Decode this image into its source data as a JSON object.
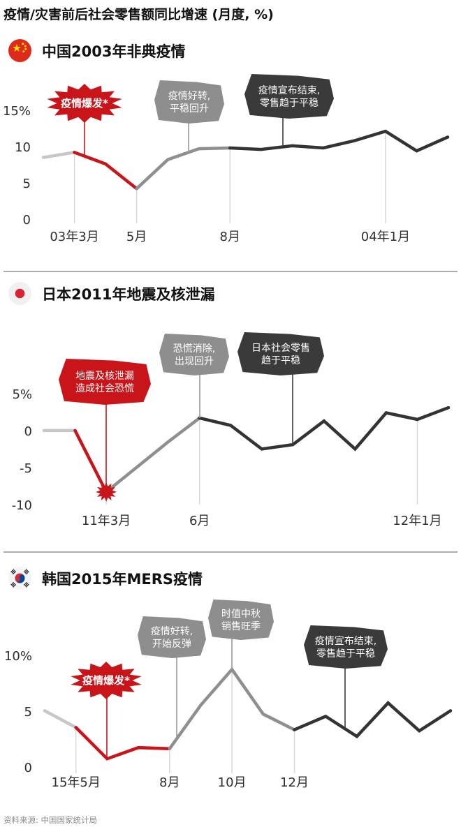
{
  "title": "疫情/灾害前后社会零售额同比增速 (月度, %)",
  "source": "资料来源: 中国国家统计局",
  "colors": {
    "red": "#c9141a",
    "light_gray": "#c7c7c7",
    "mid_gray": "#8f8f8f",
    "dark": "#333333",
    "grid": "#d8d8d8",
    "gray_blob": "#8e8e8e",
    "dark_blob": "#3a3a3a",
    "axis_text": "#2e2e2e"
  },
  "chart_data": [
    {
      "type": "line",
      "title": "中国2003年非典疫情",
      "flag": "china-flag",
      "months": [
        "03年2月",
        "03年3月",
        "03年4月",
        "03年5月",
        "03年6月",
        "03年7月",
        "03年8月",
        "03年9月",
        "03年10月",
        "03年11月",
        "03年12月",
        "04年1月",
        "04年2月",
        "04年3月"
      ],
      "values": [
        8.6,
        9.3,
        7.7,
        4.3,
        8.3,
        9.8,
        9.9,
        9.7,
        10.2,
        9.9,
        10.9,
        12.2,
        9.5,
        11.4
      ],
      "ylim": [
        0,
        15
      ],
      "ylabel": "%",
      "y_ticks": [
        {
          "label": "15%",
          "value": 15
        },
        {
          "label": "10",
          "value": 10
        },
        {
          "label": "5",
          "value": 5
        },
        {
          "label": "0",
          "value": 0
        }
      ],
      "x_ticks": [
        {
          "label": "03年3月",
          "index": 1
        },
        {
          "label": "5月",
          "index": 3
        },
        {
          "label": "8月",
          "index": 6
        },
        {
          "label": "04年1月",
          "index": 11
        }
      ],
      "segments": [
        {
          "from": 0,
          "to": 1,
          "color": "light_gray"
        },
        {
          "from": 1,
          "to": 3,
          "color": "red"
        },
        {
          "from": 3,
          "to": 6,
          "color": "mid_gray"
        },
        {
          "from": 6,
          "to": 13,
          "color": "dark"
        }
      ],
      "annotations": [
        {
          "shape": "burst",
          "style": "red",
          "lines": [
            "疫情爆发*"
          ]
        },
        {
          "shape": "blob",
          "style": "gray",
          "lines": [
            "疫情好转,",
            "平稳回升"
          ]
        },
        {
          "shape": "blob",
          "style": "dark",
          "lines": [
            "疫情宣布结束,",
            "零售趋于平稳"
          ]
        }
      ]
    },
    {
      "type": "line",
      "title": "日本2011年地震及核泄漏",
      "flag": "japan-flag",
      "months": [
        "11年1月",
        "11年2月",
        "11年3月",
        "11年4月",
        "11年5月",
        "11年6月",
        "11年7月",
        "11年8月",
        "11年9月",
        "11年10月",
        "11年11月",
        "11年12月",
        "12年1月",
        "12年2月"
      ],
      "values": [
        0.1,
        0.1,
        -8.2,
        -4.8,
        -1.4,
        1.8,
        0.8,
        -2.4,
        -1.8,
        1.4,
        -2.4,
        2.5,
        1.6,
        3.2
      ],
      "ylim": [
        -10,
        5
      ],
      "ylabel": "%",
      "burst_marker_index": 2,
      "y_ticks": [
        {
          "label": "5%",
          "value": 5
        },
        {
          "label": "0",
          "value": 0
        },
        {
          "label": "-5",
          "value": -5
        },
        {
          "label": "-10",
          "value": -10
        }
      ],
      "x_ticks": [
        {
          "label": "11年3月",
          "index": 2
        },
        {
          "label": "6月",
          "index": 5
        },
        {
          "label": "12年1月",
          "index": 12
        }
      ],
      "segments": [
        {
          "from": 0,
          "to": 1,
          "color": "light_gray"
        },
        {
          "from": 1,
          "to": 2,
          "color": "red"
        },
        {
          "from": 2,
          "to": 5,
          "color": "mid_gray"
        },
        {
          "from": 5,
          "to": 13,
          "color": "dark"
        }
      ],
      "annotations": [
        {
          "shape": "blob",
          "style": "red",
          "lines": [
            "地震及核泄漏",
            "造成社会恐慌"
          ]
        },
        {
          "shape": "blob",
          "style": "gray",
          "lines": [
            "恐慌消除,",
            "出现回升"
          ]
        },
        {
          "shape": "blob",
          "style": "dark",
          "lines": [
            "日本社会零售",
            "趋于平稳"
          ]
        }
      ]
    },
    {
      "type": "line",
      "title": "韩国2015年MERS疫情",
      "flag": "korea-flag",
      "months": [
        "15年4月",
        "15年5月",
        "15年6月",
        "15年7月",
        "15年8月",
        "15年9月",
        "15年10月",
        "15年11月",
        "15年12月",
        "16年1月",
        "16年2月",
        "16年3月",
        "16年4月",
        "16年5月"
      ],
      "values": [
        5.1,
        3.6,
        0.8,
        1.8,
        1.7,
        5.6,
        8.8,
        4.8,
        3.4,
        4.6,
        2.8,
        5.8,
        3.3,
        5.1
      ],
      "ylim": [
        0,
        10
      ],
      "ylabel": "%",
      "y_ticks": [
        {
          "label": "10%",
          "value": 10
        },
        {
          "label": "5",
          "value": 5
        },
        {
          "label": "0",
          "value": 0
        }
      ],
      "x_ticks": [
        {
          "label": "15年5月",
          "index": 1
        },
        {
          "label": "8月",
          "index": 4
        },
        {
          "label": "10月",
          "index": 6
        },
        {
          "label": "12月",
          "index": 8
        }
      ],
      "segments": [
        {
          "from": 0,
          "to": 1,
          "color": "light_gray"
        },
        {
          "from": 1,
          "to": 4,
          "color": "red"
        },
        {
          "from": 4,
          "to": 8,
          "color": "mid_gray"
        },
        {
          "from": 8,
          "to": 13,
          "color": "dark"
        }
      ],
      "annotations": [
        {
          "shape": "burst",
          "style": "red",
          "lines": [
            "疫情爆发*"
          ]
        },
        {
          "shape": "blob",
          "style": "gray",
          "lines": [
            "疫情好转,",
            "开始反弹"
          ]
        },
        {
          "shape": "blob",
          "style": "gray",
          "lines": [
            "时值中秋",
            "销售旺季"
          ]
        },
        {
          "shape": "blob",
          "style": "dark",
          "lines": [
            "疫情宣布结束,",
            "零售趋于平稳"
          ]
        }
      ]
    }
  ]
}
